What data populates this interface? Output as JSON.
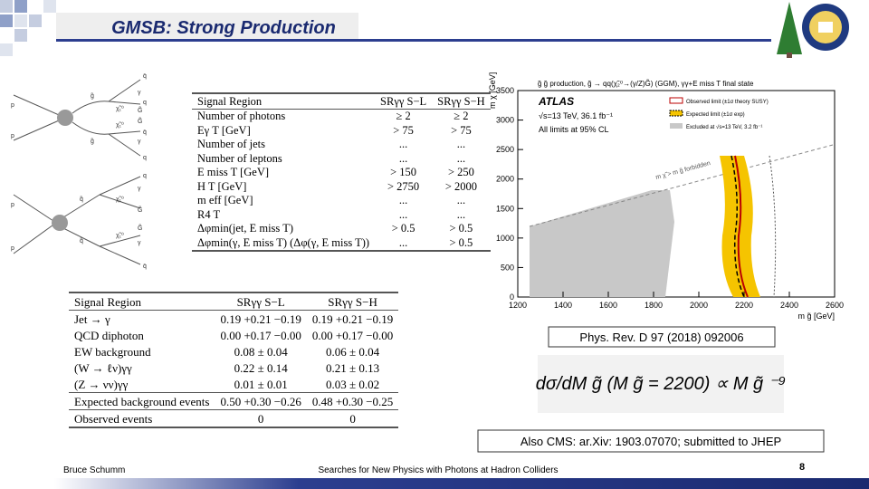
{
  "header": {
    "title": "GMSB: Strong Production"
  },
  "diagrams": {
    "top": [
      "p",
      "p",
      "g̃",
      "g̃",
      "q̄",
      "q",
      "χ̃₁⁰",
      "χ̃₁⁰",
      "γ",
      "G̃",
      "G̃",
      "γ",
      "q̄",
      "q"
    ],
    "bottom": [
      "p",
      "p",
      "q̃",
      "q̃",
      "q",
      "q̄",
      "χ̃₁⁰",
      "χ̃₁⁰",
      "γ",
      "G̃",
      "G̃",
      "γ"
    ]
  },
  "table1": {
    "header": [
      "Signal Region",
      "SRγγ S−L",
      "SRγγ S−H"
    ],
    "rows": [
      [
        "Number of photons",
        "≥ 2",
        "≥ 2"
      ],
      [
        "Eγ T [GeV]",
        "> 75",
        "> 75"
      ],
      [
        "Number of jets",
        "...",
        "..."
      ],
      [
        "Number of leptons",
        "...",
        "..."
      ],
      [
        "E miss T [GeV]",
        "> 150",
        "> 250"
      ],
      [
        "H T [GeV]",
        "> 2750",
        "> 2000"
      ],
      [
        "m eff [GeV]",
        "...",
        "..."
      ],
      [
        "R4 T",
        "...",
        "..."
      ],
      [
        "Δφmin(jet, E miss T)",
        "> 0.5",
        "> 0.5"
      ],
      [
        "Δφmin(γ, E miss T) (Δφ(γ, E miss T))",
        "...",
        "> 0.5"
      ]
    ]
  },
  "table2": {
    "header": [
      "Signal Region",
      "SRγγ S−L",
      "SRγγ S−H"
    ],
    "rows": [
      [
        "Jet → γ",
        "0.19 +0.21 −0.19",
        "0.19 +0.21 −0.19"
      ],
      [
        "QCD diphoton",
        "0.00 +0.17 −0.00",
        "0.00 +0.17 −0.00"
      ],
      [
        "EW background",
        "0.08 ± 0.04",
        "0.06 ± 0.04"
      ],
      [
        "(W → ℓν)γγ",
        "0.22 ± 0.14",
        "0.21 ± 0.13"
      ],
      [
        "(Z → νν)γγ",
        "0.01 ± 0.01",
        "0.03 ± 0.02"
      ],
      [
        "Expected background events",
        "0.50 +0.30 −0.26",
        "0.48 +0.30 −0.25"
      ],
      [
        "Observed events",
        "0",
        "0"
      ]
    ]
  },
  "plot": {
    "title": "g̃ g̃ production, g̃ → qq(χ̃₂⁰→(γ/Z)G̃) (GGM), γγ+E miss T final state",
    "experiment": "ATLAS",
    "energy": "√s=13 TeV, 36.1 fb⁻¹",
    "cl": "All limits at 95% CL",
    "legend": [
      "Observed limit (±1σ theory SUSY)",
      "Expected limit (±1σ exp)",
      "Excluded at √s=13 TeV, 3.2 fb⁻¹"
    ],
    "forbidden": "m χ̃ > m g̃ forbidden",
    "ylabel": "m χ̃ [GeV]",
    "xlabel": "m g̃ [GeV]",
    "yticks": [
      0,
      500,
      1000,
      1500,
      2000,
      2500,
      3000,
      3500
    ],
    "xticks": [
      1200,
      1400,
      1600,
      1800,
      2000,
      2200,
      2400,
      2600
    ]
  },
  "reference": "Phys. Rev. D 97 (2018) 092006",
  "formula": "dσ/dM g̃ (M g̃ = 2200) ∝ M g̃ ⁻⁹",
  "cms": "Also CMS: ar.Xiv: 1903.07070; submitted to JHEP",
  "footer": {
    "author": "Bruce Schumm",
    "talk": "Searches for New Physics with Photons at Hadron Colliders",
    "page": "8"
  }
}
